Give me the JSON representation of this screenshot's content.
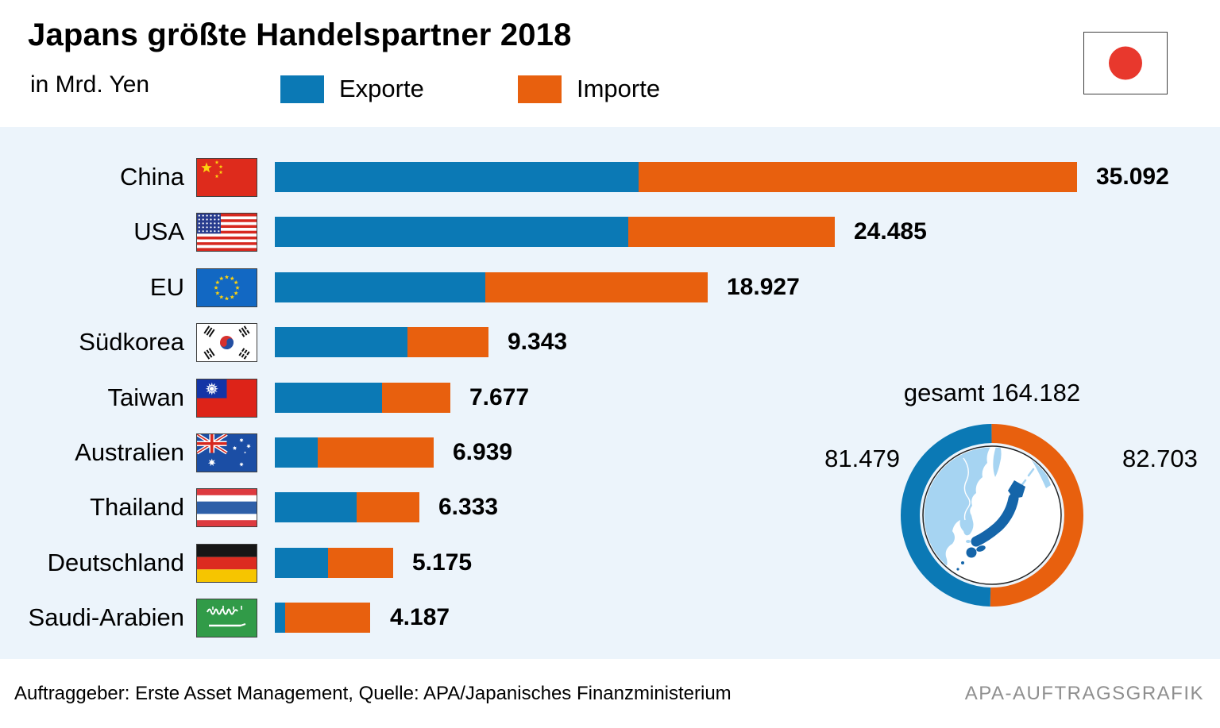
{
  "header": {
    "title": "Japans größte Handelspartner 2018",
    "subtitle": "in Mrd. Yen",
    "legend": [
      {
        "label": "Exporte",
        "color": "#0b79b5"
      },
      {
        "label": "Importe",
        "color": "#e8600e"
      }
    ],
    "flag_icon": "japan-flag"
  },
  "chart_data": {
    "type": "bar",
    "orientation": "horizontal-stacked",
    "unit": "Mrd. Yen",
    "title": "Japans größte Handelspartner 2018",
    "categories": [
      "China",
      "USA",
      "EU",
      "Südkorea",
      "Taiwan",
      "Australien",
      "Thailand",
      "Deutschland",
      "Saudi-Arabien"
    ],
    "flags": [
      "china-flag",
      "usa-flag",
      "eu-flag",
      "south-korea-flag",
      "taiwan-flag",
      "australia-flag",
      "thailand-flag",
      "germany-flag",
      "saudi-arabia-flag"
    ],
    "flag_codes": [
      "cn",
      "us",
      "eu",
      "kr",
      "tw",
      "au",
      "th",
      "de",
      "sa"
    ],
    "series": [
      {
        "name": "Exporte",
        "color": "#0b79b5",
        "estimated_from_bar_lengths": true,
        "values": [
          15900,
          15470,
          9210,
          5790,
          4680,
          1860,
          3570,
          2320,
          460
        ]
      },
      {
        "name": "Importe",
        "color": "#e8600e",
        "estimated_from_bar_lengths": true,
        "values": [
          19192,
          9015,
          9717,
          3553,
          2997,
          5079,
          2763,
          2855,
          3727
        ]
      }
    ],
    "totals": [
      35092,
      24485,
      18927,
      9343,
      7677,
      6939,
      6333,
      5175,
      4187
    ],
    "total_labels": [
      "35.092",
      "24.485",
      "18.927",
      "9.343",
      "7.677",
      "6.939",
      "6.333",
      "5.175",
      "4.187"
    ],
    "xlim": [
      0,
      36000
    ],
    "grid": false,
    "legend_position": "top",
    "donut": {
      "label": "gesamt 164.182",
      "total": 164182,
      "exports": 81479,
      "imports": 82703,
      "exports_label": "81.479",
      "imports_label": "82.703"
    }
  },
  "footer": {
    "source": "Auftraggeber: Erste Asset Management, Quelle: APA/Japanisches Finanzministerium",
    "credit": "APA-AUFTRAGSGRAFIK"
  },
  "colors": {
    "export_blue": "#0b79b5",
    "import_orange": "#e8600e",
    "panel_background": "#ecf4fb",
    "map_continent": "#a6d4f2",
    "map_japan": "#1565a9",
    "map_outline": "#222222",
    "credit_gray": "#8f8f8f"
  }
}
